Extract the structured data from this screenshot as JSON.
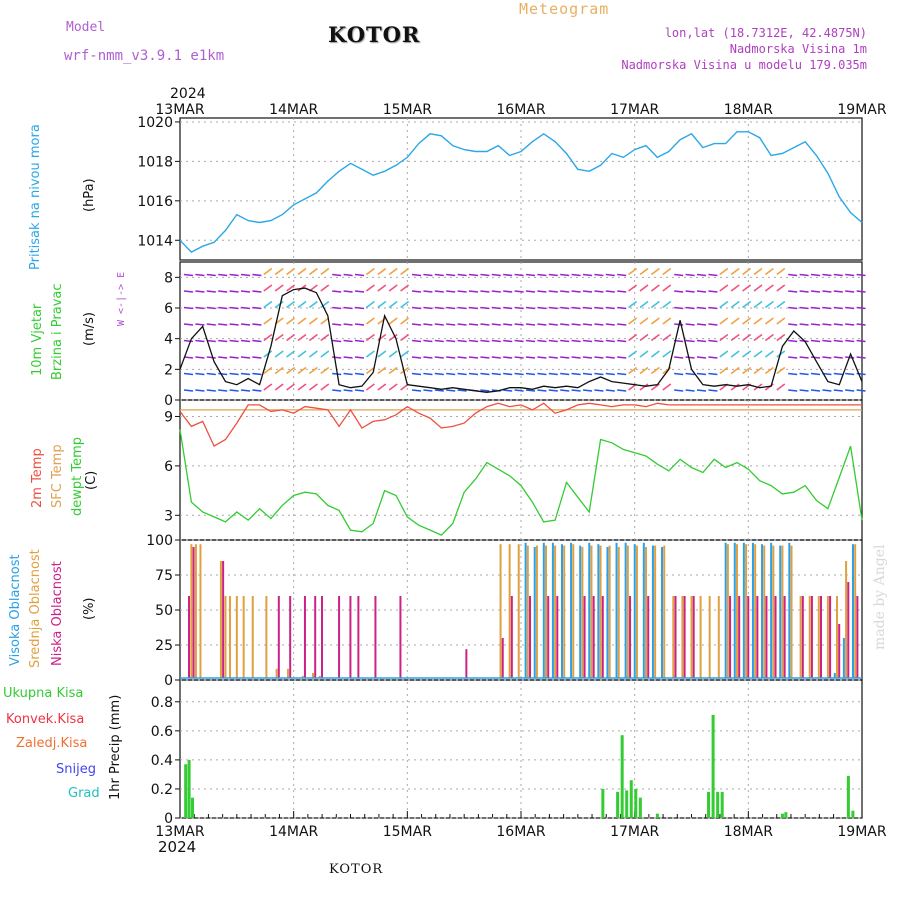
{
  "header": {
    "model_label": "Model",
    "model_value": "wrf-nmm_v3.9.1 e1km",
    "title": "KOTOR",
    "meteogram": "Meteogram",
    "lonlat": "lon,lat (18.7312E, 42.4875N)",
    "elevation": "Nadmorska Visina 1m",
    "elevation_model": "Nadmorska Visina u modelu 179.035m"
  },
  "footer": {
    "year_top": "2024",
    "year_bottom": "2024",
    "location": "KOTOR",
    "watermark": "made by Angel"
  },
  "colors": {
    "pressure": "#2aa7e8",
    "temp2m": "#ee5040",
    "sfc": "#e0a050",
    "dewpt": "#33cc33",
    "high_cloud": "#2aa0e8",
    "mid_cloud": "#e0a040",
    "low_cloud": "#cc2288",
    "precip": "#33cc33",
    "wind_speed": "#111111",
    "gust": "#ee4444",
    "grid": "#aaaaaa"
  },
  "chart_data": [
    {
      "type": "line",
      "panel": "pressure",
      "ylabel": [
        "Pritisak na nivou mora",
        "(hPa)"
      ],
      "ylim": [
        1013,
        1020.2
      ],
      "yticks": [
        1014,
        1016,
        1018,
        1020
      ],
      "x_tick_labels": [
        "13MAR",
        "14MAR",
        "15MAR",
        "16MAR",
        "17MAR",
        "18MAR",
        "19MAR"
      ],
      "x": [
        0,
        0.1,
        0.2,
        0.3,
        0.4,
        0.5,
        0.6,
        0.7,
        0.8,
        0.9,
        1.0,
        1.1,
        1.2,
        1.3,
        1.4,
        1.5,
        1.6,
        1.7,
        1.8,
        1.9,
        2.0,
        2.1,
        2.2,
        2.3,
        2.4,
        2.5,
        2.6,
        2.7,
        2.8,
        2.9,
        3.0,
        3.1,
        3.2,
        3.3,
        3.4,
        3.5,
        3.6,
        3.7,
        3.8,
        3.9,
        4.0,
        4.1,
        4.2,
        4.3,
        4.4,
        4.5,
        4.6,
        4.7,
        4.8,
        4.9,
        5.0,
        5.1,
        5.2,
        5.3,
        5.4,
        5.5,
        5.6,
        5.7,
        5.8,
        5.9,
        6.0
      ],
      "series": [
        {
          "values": [
            1014.0,
            1013.4,
            1013.7,
            1013.9,
            1014.5,
            1015.3,
            1015.0,
            1014.9,
            1015.0,
            1015.3,
            1015.8,
            1016.1,
            1016.4,
            1017.0,
            1017.5,
            1017.9,
            1017.6,
            1017.3,
            1017.5,
            1017.8,
            1018.2,
            1018.9,
            1019.4,
            1019.3,
            1018.8,
            1018.6,
            1018.5,
            1018.5,
            1018.8,
            1018.3,
            1018.5,
            1019.0,
            1019.4,
            1019.0,
            1018.4,
            1017.6,
            1017.5,
            1017.8,
            1018.4,
            1018.2,
            1018.6,
            1018.8,
            1018.2,
            1018.5,
            1019.1,
            1019.4,
            1018.7,
            1018.9,
            1018.9,
            1019.5,
            1019.5,
            1019.2,
            1018.3,
            1018.4,
            1018.7,
            1019.0,
            1018.3,
            1017.4,
            1016.2,
            1015.4,
            1014.9
          ]
        }
      ]
    },
    {
      "type": "line",
      "panel": "wind",
      "ylabel": [
        "10m Vjetar",
        "Brzina i Pravac",
        "(m/s)"
      ],
      "direction_legend": "W <-|-> E",
      "ylim": [
        0,
        9
      ],
      "yticks": [
        0,
        2,
        4,
        6,
        8
      ],
      "x": [
        0,
        0.1,
        0.2,
        0.3,
        0.4,
        0.5,
        0.6,
        0.7,
        0.8,
        0.9,
        1.0,
        1.1,
        1.2,
        1.3,
        1.4,
        1.5,
        1.6,
        1.7,
        1.8,
        1.9,
        2.0,
        2.1,
        2.2,
        2.3,
        2.4,
        2.5,
        2.6,
        2.7,
        2.8,
        2.9,
        3.0,
        3.1,
        3.2,
        3.3,
        3.4,
        3.5,
        3.6,
        3.7,
        3.8,
        3.9,
        4.0,
        4.1,
        4.2,
        4.3,
        4.4,
        4.5,
        4.6,
        4.7,
        4.8,
        4.9,
        5.0,
        5.1,
        5.2,
        5.3,
        5.4,
        5.5,
        5.6,
        5.7,
        5.8,
        5.9,
        6.0
      ],
      "series": [
        {
          "values": [
            2.0,
            4.0,
            4.8,
            2.5,
            1.2,
            1.0,
            1.4,
            1.0,
            3.5,
            6.8,
            7.2,
            7.3,
            7.0,
            5.5,
            1.0,
            0.8,
            0.9,
            1.8,
            5.5,
            4.0,
            1.0,
            0.9,
            0.8,
            0.7,
            0.8,
            0.7,
            0.6,
            0.5,
            0.6,
            0.8,
            0.8,
            0.7,
            0.9,
            0.8,
            0.9,
            0.8,
            1.2,
            1.5,
            1.2,
            1.1,
            1.0,
            0.9,
            1.0,
            2.0,
            5.2,
            2.0,
            1.0,
            0.9,
            1.0,
            0.9,
            1.0,
            0.8,
            0.9,
            3.5,
            4.5,
            3.8,
            2.5,
            1.2,
            1.0,
            3.0,
            1.2
          ]
        }
      ]
    },
    {
      "type": "line",
      "panel": "temperature",
      "ylabel": [
        "2m Temp",
        "SFC Temp",
        "dewpt Temp",
        "(C)"
      ],
      "ylim": [
        1.5,
        10
      ],
      "yticks": [
        3,
        6,
        9
      ],
      "x": [
        0,
        0.1,
        0.2,
        0.3,
        0.4,
        0.5,
        0.6,
        0.7,
        0.8,
        0.9,
        1.0,
        1.1,
        1.2,
        1.3,
        1.4,
        1.5,
        1.6,
        1.7,
        1.8,
        1.9,
        2.0,
        2.1,
        2.2,
        2.3,
        2.4,
        2.5,
        2.6,
        2.7,
        2.8,
        2.9,
        3.0,
        3.1,
        3.2,
        3.3,
        3.4,
        3.5,
        3.6,
        3.7,
        3.8,
        3.9,
        4.0,
        4.1,
        4.2,
        4.3,
        4.4,
        4.5,
        4.6,
        4.7,
        4.8,
        4.9,
        5.0,
        5.1,
        5.2,
        5.3,
        5.4,
        5.5,
        5.6,
        5.7,
        5.8,
        5.9,
        6.0
      ],
      "series": [
        {
          "name": "2m Temp",
          "values": [
            9.3,
            8.4,
            8.7,
            7.2,
            7.6,
            8.6,
            9.7,
            9.7,
            9.3,
            9.4,
            9.2,
            9.6,
            9.5,
            9.4,
            8.4,
            9.4,
            8.3,
            8.7,
            8.8,
            9.1,
            9.6,
            9.2,
            8.9,
            8.3,
            8.4,
            8.6,
            9.2,
            9.6,
            9.8,
            9.6,
            9.7,
            9.4,
            9.8,
            9.2,
            9.4,
            9.7,
            9.8,
            9.7,
            9.6,
            9.7,
            9.7,
            9.6,
            9.8,
            9.7,
            9.7,
            9.7,
            9.7,
            9.7,
            9.7,
            9.7,
            9.7,
            9.7,
            9.7,
            9.7,
            9.7,
            9.7,
            9.7,
            9.7,
            9.7,
            9.7,
            9.7
          ]
        },
        {
          "name": "SFC Temp",
          "values": [
            9.4,
            9.4,
            9.4,
            9.4,
            9.4,
            9.4,
            9.4,
            9.4,
            9.4,
            9.4,
            9.4,
            9.4,
            9.4,
            9.4,
            9.4,
            9.4,
            9.4,
            9.4,
            9.4,
            9.4,
            9.4,
            9.4,
            9.4,
            9.4,
            9.4,
            9.4,
            9.4,
            9.4,
            9.4,
            9.4,
            9.4,
            9.4,
            9.4,
            9.4,
            9.4,
            9.4,
            9.4,
            9.4,
            9.4,
            9.4,
            9.4,
            9.4,
            9.4,
            9.4,
            9.4,
            9.4,
            9.4,
            9.4,
            9.4,
            9.4,
            9.4,
            9.4,
            9.4,
            9.4,
            9.4,
            9.4,
            9.4,
            9.4,
            9.4,
            9.4,
            9.4
          ]
        },
        {
          "name": "dewpt Temp",
          "values": [
            8.2,
            3.8,
            3.2,
            2.9,
            2.6,
            3.2,
            2.7,
            3.4,
            2.8,
            3.6,
            4.2,
            4.4,
            4.3,
            3.6,
            3.3,
            2.1,
            2.0,
            2.5,
            4.5,
            4.2,
            2.9,
            2.4,
            2.1,
            1.8,
            2.5,
            4.4,
            5.2,
            6.2,
            5.8,
            5.4,
            4.8,
            3.8,
            2.6,
            2.7,
            5.0,
            4.1,
            3.2,
            7.6,
            7.4,
            7.0,
            6.8,
            6.6,
            6.1,
            5.7,
            6.4,
            5.9,
            5.6,
            6.4,
            5.9,
            6.2,
            5.8,
            5.1,
            4.8,
            4.3,
            4.4,
            4.8,
            3.9,
            3.4,
            5.3,
            7.2,
            2.7
          ]
        }
      ]
    },
    {
      "type": "bar",
      "panel": "cloud",
      "ylabel": [
        "Visoka Oblacnost",
        "Srednja Oblacnost",
        "Niska Oblacnost",
        "(%)"
      ],
      "ylim": [
        0,
        100
      ],
      "yticks": [
        0,
        25,
        50,
        75,
        100
      ],
      "x": [
        0.06,
        0.1,
        0.14,
        0.18,
        0.36,
        0.4,
        0.44,
        0.5,
        0.56,
        0.64,
        0.76,
        0.85,
        0.95,
        1.08,
        1.17,
        1.23,
        1.38,
        1.48,
        1.55,
        1.7,
        1.82,
        1.92,
        1.98,
        2.5,
        2.82,
        2.9,
        2.98,
        3.06,
        3.14,
        3.22,
        3.3,
        3.38,
        3.46,
        3.54,
        3.62,
        3.7,
        3.78,
        3.86,
        3.94,
        4.02,
        4.1,
        4.18,
        4.26,
        4.34,
        4.42,
        4.5,
        4.58,
        4.66,
        4.74,
        4.82,
        4.9,
        4.98,
        5.06,
        5.14,
        5.22,
        5.3,
        5.38,
        5.46,
        5.54,
        5.62,
        5.7,
        5.78,
        5.86,
        5.94
      ],
      "series": [
        {
          "name": "Visoka Oblacnost",
          "values": [
            0,
            0,
            0,
            0,
            0,
            0,
            0,
            0,
            0,
            0,
            0,
            0,
            0,
            0,
            0,
            0,
            0,
            0,
            0,
            0,
            0,
            0,
            0,
            0,
            0,
            0,
            0,
            98,
            95,
            98,
            98,
            97,
            98,
            96,
            98,
            97,
            95,
            98,
            98,
            97,
            98,
            96,
            95,
            0,
            0,
            0,
            0,
            0,
            0,
            98,
            98,
            98,
            98,
            97,
            98,
            96,
            98,
            0,
            0,
            0,
            0,
            5,
            30,
            97
          ]
        },
        {
          "name": "Srednja Oblacnost",
          "values": [
            0,
            97,
            97,
            97,
            85,
            60,
            60,
            60,
            60,
            60,
            60,
            8,
            8,
            3,
            5,
            3,
            0,
            0,
            0,
            0,
            0,
            0,
            0,
            0,
            97,
            97,
            97,
            96,
            96,
            96,
            96,
            96,
            97,
            95,
            96,
            96,
            96,
            95,
            96,
            96,
            95,
            96,
            96,
            60,
            60,
            60,
            60,
            60,
            60,
            97,
            97,
            97,
            97,
            96,
            96,
            96,
            96,
            60,
            60,
            60,
            60,
            60,
            85,
            97
          ]
        },
        {
          "name": "Niska Oblacnost",
          "values": [
            60,
            95,
            0,
            0,
            85,
            0,
            0,
            0,
            0,
            0,
            0,
            60,
            60,
            60,
            60,
            60,
            60,
            60,
            60,
            60,
            0,
            60,
            0,
            22,
            30,
            60,
            0,
            60,
            0,
            60,
            60,
            0,
            0,
            60,
            60,
            60,
            0,
            0,
            60,
            0,
            60,
            0,
            0,
            60,
            60,
            60,
            0,
            0,
            0,
            60,
            60,
            60,
            60,
            60,
            60,
            60,
            0,
            60,
            60,
            60,
            60,
            40,
            70,
            60
          ]
        }
      ]
    },
    {
      "type": "bar",
      "panel": "precip",
      "ylabel": [
        "1hr Precip (mm)"
      ],
      "legend": [
        "Ukupna Kisa",
        "Konvek.Kisa",
        "Zaledj.Kisa",
        "Snijeg",
        "Grad"
      ],
      "ylim": [
        0,
        0.95
      ],
      "yticks": [
        0,
        0.2,
        0.4,
        0.6,
        0.8
      ],
      "x": [
        0.05,
        0.08,
        0.11,
        3.72,
        3.85,
        3.89,
        3.93,
        3.97,
        4.01,
        4.05,
        4.2,
        4.65,
        4.69,
        4.73,
        4.77,
        5.3,
        5.33,
        5.88,
        5.92
      ],
      "series": [
        {
          "name": "Ukupna Kisa",
          "values": [
            0.37,
            0.4,
            0.14,
            0.2,
            0.18,
            0.57,
            0.19,
            0.26,
            0.2,
            0.14,
            0.03,
            0.18,
            0.71,
            0.18,
            0.18,
            0.03,
            0.04,
            0.29,
            0.05
          ]
        }
      ]
    }
  ]
}
